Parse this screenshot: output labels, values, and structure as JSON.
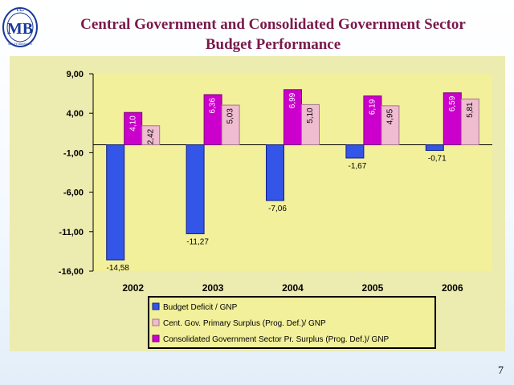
{
  "slide": {
    "title_line1": "Central Government and Consolidated Government Sector",
    "title_line2": "Budget Performance",
    "page_number": "7",
    "logo": {
      "text": "MB",
      "top_text": "T.C.",
      "bottom_text": "MALİYE BAKANLIĞI"
    }
  },
  "colors": {
    "plot_bg": "#f2f09a",
    "outer_bg": "#ecebb0",
    "title": "#7a1a4c",
    "series": [
      "#3355e8",
      "#f0bcd0",
      "#cc00cc"
    ],
    "series_dark": [
      "#0f1f8a",
      "#a07888",
      "#7a007a"
    ]
  },
  "chart_data": {
    "type": "bar",
    "title": "",
    "xlabel": "",
    "ylabel": "",
    "categories": [
      "2002",
      "2003",
      "2004",
      "2005",
      "2006"
    ],
    "series": [
      {
        "name": "Budget Deficit / GNP",
        "values": [
          -14.58,
          -11.27,
          -7.06,
          -1.67,
          -0.71
        ],
        "labels": [
          "-14,58",
          "-11,27",
          "-7,06",
          "-1,67",
          "-0,71"
        ]
      },
      {
        "name": "Cent. Gov. Primary Surplus (Prog. Def.)/ GNP",
        "values": [
          2.42,
          5.03,
          5.1,
          4.95,
          5.81
        ],
        "labels": [
          "2,42",
          "5,03",
          "5,10",
          "4,95",
          "5,81"
        ]
      },
      {
        "name": "Consolidated Government Sector Pr. Surplus (Prog. Def.)/ GNP",
        "values": [
          4.1,
          6.36,
          6.99,
          6.19,
          6.59
        ],
        "labels": [
          "4,10",
          "6,36",
          "6,99",
          "6,19",
          "6,59"
        ]
      }
    ],
    "yticks": [
      9,
      4,
      -1,
      -6,
      -11,
      -16
    ],
    "ytick_labels": [
      "9,00",
      "4,00",
      "-1,00",
      "-6,00",
      "-11,00",
      "-16,00"
    ],
    "ylim": [
      -16,
      9
    ],
    "grid": false,
    "legend_position": "bottom"
  }
}
